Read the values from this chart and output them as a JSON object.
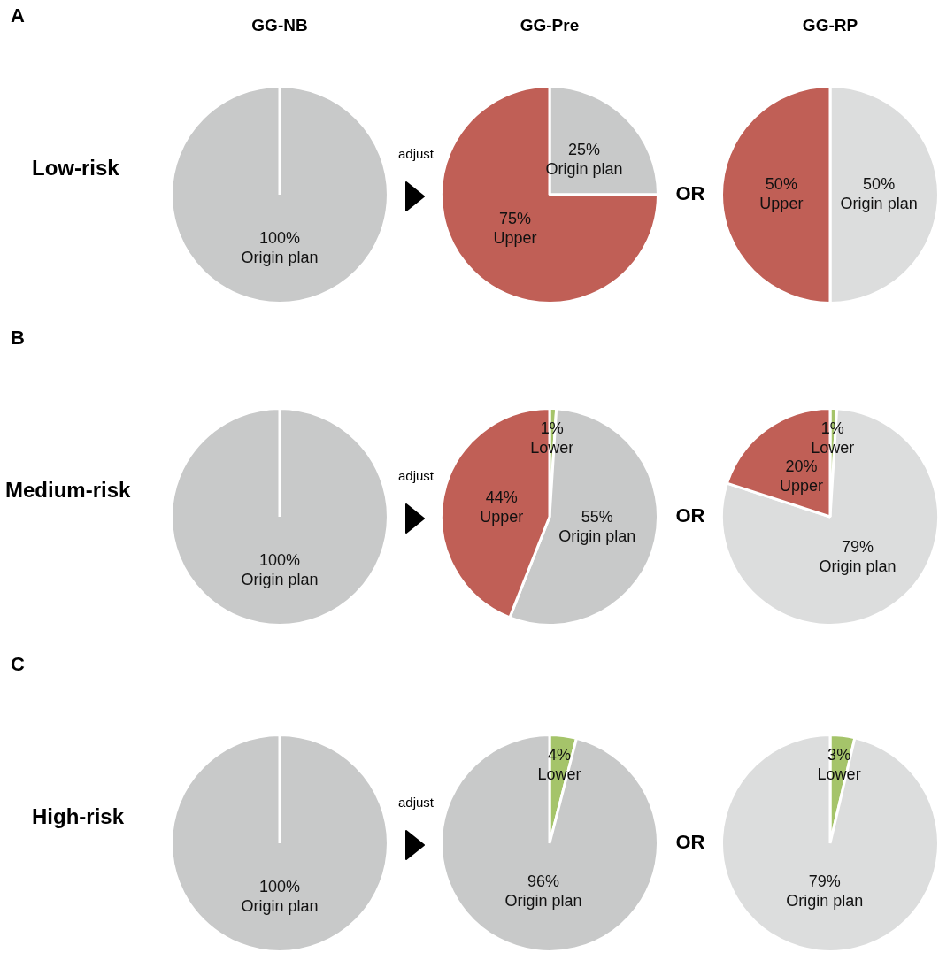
{
  "chart_data": [
    {
      "type": "pie",
      "title": "GG-NB",
      "annotations": [
        "A",
        "Low-risk"
      ],
      "categories": [
        "Origin plan"
      ],
      "values": [
        100
      ],
      "value_labels": [
        "100%"
      ],
      "colors": [
        "#c8c9c9"
      ],
      "legend": false
    },
    {
      "type": "pie",
      "title": "GG-Pre",
      "annotations": [
        "adjust"
      ],
      "categories": [
        "Origin plan",
        "Upper"
      ],
      "values": [
        25,
        75
      ],
      "value_labels": [
        "25%",
        "75%"
      ],
      "colors": [
        "#c8c9c9",
        "#c05f56"
      ],
      "legend": false
    },
    {
      "type": "pie",
      "title": "GG-RP",
      "annotations": [
        "OR"
      ],
      "categories": [
        "Origin plan",
        "Upper"
      ],
      "values": [
        50,
        50
      ],
      "value_labels": [
        "50%",
        "50%"
      ],
      "colors": [
        "#dcdddd",
        "#c05f56"
      ],
      "legend": false
    },
    {
      "type": "pie",
      "annotations": [
        "B",
        "Medium-risk"
      ],
      "categories": [
        "Origin plan"
      ],
      "values": [
        100
      ],
      "value_labels": [
        "100%"
      ],
      "colors": [
        "#c8c9c9"
      ],
      "legend": false
    },
    {
      "type": "pie",
      "annotations": [
        "adjust"
      ],
      "categories": [
        "Lower",
        "Origin plan",
        "Upper"
      ],
      "values": [
        1,
        55,
        44
      ],
      "value_labels": [
        "1%",
        "55%",
        "44%"
      ],
      "colors": [
        "#a5c46a",
        "#c8c9c9",
        "#c05f56"
      ],
      "legend": false
    },
    {
      "type": "pie",
      "annotations": [
        "OR"
      ],
      "categories": [
        "Lower",
        "Origin plan",
        "Upper"
      ],
      "values": [
        1,
        79,
        20
      ],
      "value_labels": [
        "1%",
        "79%",
        "20%"
      ],
      "colors": [
        "#a5c46a",
        "#dcdddd",
        "#c05f56"
      ],
      "legend": false
    },
    {
      "type": "pie",
      "annotations": [
        "C",
        "High-risk"
      ],
      "categories": [
        "Origin plan"
      ],
      "values": [
        100
      ],
      "value_labels": [
        "100%"
      ],
      "colors": [
        "#c8c9c9"
      ],
      "legend": false
    },
    {
      "type": "pie",
      "annotations": [
        "adjust"
      ],
      "categories": [
        "Lower",
        "Origin plan"
      ],
      "values": [
        4,
        96
      ],
      "value_labels": [
        "4%",
        "96%"
      ],
      "colors": [
        "#a5c46a",
        "#c8c9c9"
      ],
      "legend": false
    },
    {
      "type": "pie",
      "annotations": [
        "OR"
      ],
      "categories": [
        "Lower",
        "Origin plan"
      ],
      "values": [
        3,
        79
      ],
      "value_labels": [
        "3%",
        "79%"
      ],
      "colors": [
        "#a5c46a",
        "#dcdddd"
      ],
      "legend": false
    }
  ]
}
